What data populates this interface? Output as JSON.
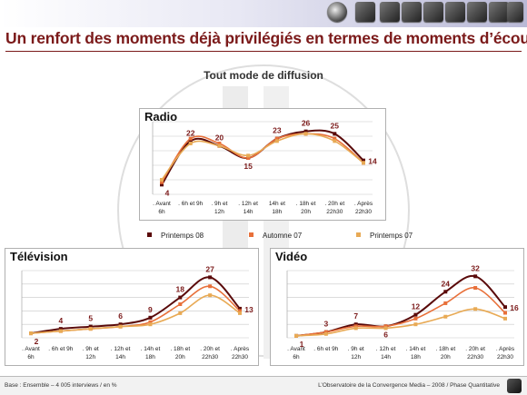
{
  "slide": {
    "title": "Un renfort des moments déjà privilégiés en termes de moments d’écoute",
    "subtitle": "Tout mode de diffusion",
    "footer_left": "Base : Ensemble – 4 005 interviews / en %",
    "footer_right": "L’Observatoire de la Convergence Media – 2008 / Phase Quantitative",
    "colors": {
      "title": "#7b1a1a",
      "printemps08": "#5a0a0a",
      "automne07": "#e8703a",
      "printemps07": "#e8aa55"
    }
  },
  "legend": [
    "Printemps 08",
    "Automne 07",
    "Printemps 07"
  ],
  "chart_data": [
    {
      "type": "line",
      "title": "Radio",
      "categories": [
        ". Avant\n6h",
        ". 6h et 9h",
        ". 9h et\n12h",
        ". 12h et\n14h",
        "14h et\n18h",
        ". 18h et\n20h",
        ". 20h et\n22h30",
        ". Après\n22h30"
      ],
      "labels": [
        4,
        22,
        20,
        15,
        23,
        26,
        25,
        14
      ],
      "series": [
        {
          "name": "Printemps 08",
          "values": [
            4,
            22,
            20,
            15,
            23,
            26,
            25,
            14
          ]
        },
        {
          "name": "Automne 07",
          "values": [
            5,
            23,
            21,
            15,
            23,
            25,
            23,
            13
          ]
        },
        {
          "name": "Printemps 07",
          "values": [
            6,
            21,
            20,
            16,
            22,
            25,
            22,
            13
          ]
        }
      ],
      "ylim": [
        0,
        30
      ]
    },
    {
      "type": "line",
      "title": "Télévision",
      "categories": [
        ". Avant\n6h",
        ". 6h et 9h",
        ". 9h et\n12h",
        ". 12h et\n14h",
        ". 14h et\n18h",
        ". 18h et\n20h",
        ". 20h et\n22h30",
        ". Après\n22h30"
      ],
      "labels": [
        2,
        4,
        5,
        6,
        9,
        18,
        27,
        13
      ],
      "series": [
        {
          "name": "Printemps 08",
          "values": [
            2,
            4,
            5,
            6,
            9,
            18,
            27,
            13
          ]
        },
        {
          "name": "Automne 07",
          "values": [
            2,
            3,
            4,
            5,
            7,
            15,
            23,
            12
          ]
        },
        {
          "name": "Printemps 07",
          "values": [
            2,
            3,
            4,
            5,
            6,
            11,
            19,
            11
          ]
        }
      ],
      "ylim": [
        0,
        30
      ]
    },
    {
      "type": "line",
      "title": "Vidéo",
      "categories": [
        ". Avant\n6h",
        ". 6h et 9h",
        ". 9h et\n12h",
        ". 12h et\n14h",
        ". 14h et\n18h",
        ". 18h et\n20h",
        ". 20h et\n22h30",
        ". Après\n22h30"
      ],
      "labels": [
        1,
        3,
        7,
        6,
        12,
        24,
        32,
        16
      ],
      "series": [
        {
          "name": "Printemps 08",
          "values": [
            1,
            3,
            7,
            6,
            12,
            24,
            32,
            16
          ]
        },
        {
          "name": "Automne 07",
          "values": [
            1,
            3,
            6,
            6,
            10,
            18,
            26,
            13
          ]
        },
        {
          "name": "Printemps 07",
          "values": [
            1,
            2,
            5,
            5,
            7,
            11,
            15,
            10
          ]
        }
      ],
      "ylim": [
        0,
        35
      ]
    }
  ]
}
